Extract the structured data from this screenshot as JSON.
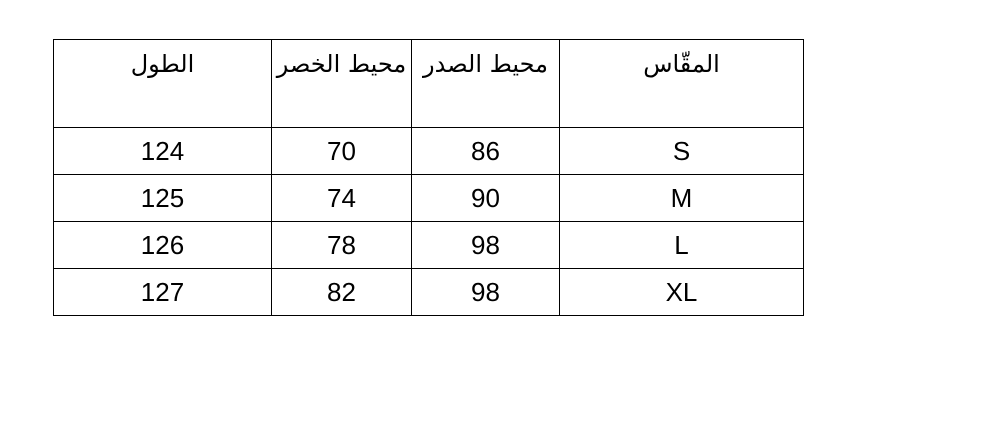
{
  "table": {
    "headers": [
      "المقّاس",
      "محيط الصدر",
      "محيط الخصر",
      "الطول"
    ],
    "rows": [
      [
        "S",
        "86",
        "70",
        "124"
      ],
      [
        "M",
        "90",
        "74",
        "125"
      ],
      [
        "L",
        "98",
        "78",
        "126"
      ],
      [
        "XL",
        "98",
        "82",
        "127"
      ]
    ]
  }
}
